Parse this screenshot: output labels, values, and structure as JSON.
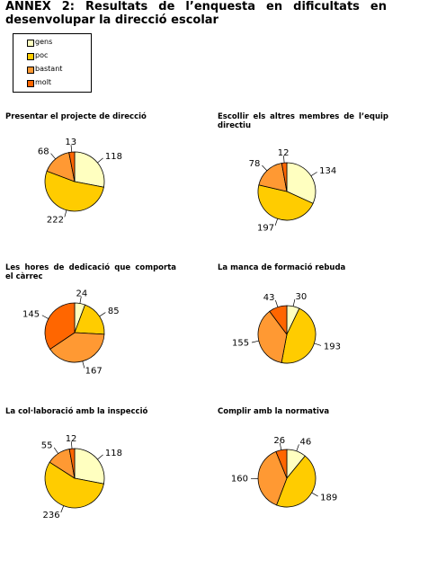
{
  "heading": "ANNEX 2: Resultats de l’enquesta en dificultats en desenvolupar la direcció escolar",
  "legend": {
    "categories": [
      "gens",
      "poc",
      "bastant",
      "molt"
    ],
    "colors": [
      "#ffffc0",
      "#ffcc00",
      "#ff9933",
      "#ff6600"
    ]
  },
  "chart_data": [
    {
      "type": "pie",
      "title": "Presentar el projecte de direcció",
      "values": [
        118,
        222,
        68,
        13
      ]
    },
    {
      "type": "pie",
      "title": "Escollir els altres membres de l’equip directiu",
      "values": [
        134,
        197,
        78,
        12
      ]
    },
    {
      "type": "pie",
      "title": "Les hores de dedicació que comporta el càrrec",
      "values": [
        24,
        85,
        167,
        145
      ]
    },
    {
      "type": "pie",
      "title": "La manca de formació rebuda",
      "values": [
        30,
        193,
        155,
        43
      ]
    },
    {
      "type": "pie",
      "title": "La col·laboració amb la inspecció",
      "values": [
        118,
        236,
        55,
        12
      ]
    },
    {
      "type": "pie",
      "title": "Complir amb la normativa",
      "values": [
        46,
        189,
        160,
        26
      ]
    }
  ]
}
